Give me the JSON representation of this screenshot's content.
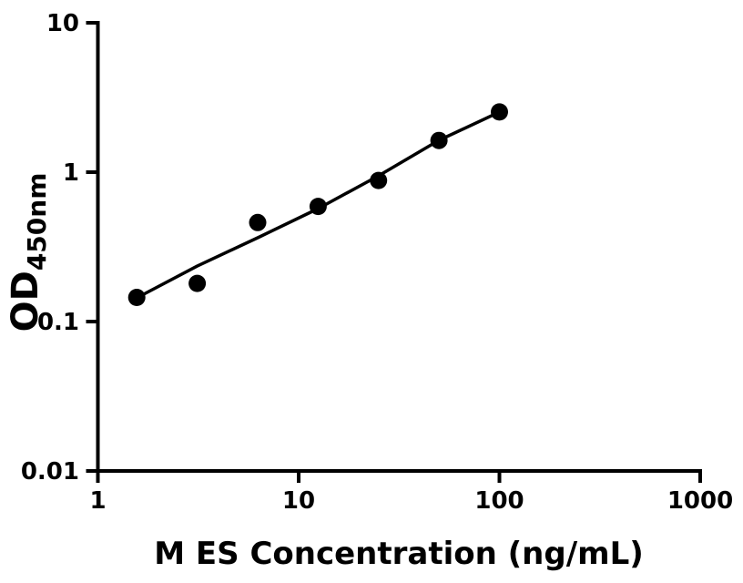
{
  "chart_data": {
    "type": "scatter",
    "title": "",
    "xlabel": "M ES Concentration (ng/mL)",
    "ylabel_main": "OD",
    "ylabel_sub": "450nm",
    "x_scale": "log",
    "y_scale": "log",
    "xlim": [
      1,
      1000
    ],
    "ylim": [
      0.01,
      10
    ],
    "x_ticks": [
      1,
      10,
      100,
      1000
    ],
    "x_tick_labels": [
      "1",
      "10",
      "100",
      "1000"
    ],
    "y_ticks": [
      0.01,
      0.1,
      1,
      10
    ],
    "y_tick_labels": [
      "0.01",
      "0.1",
      "1",
      "10"
    ],
    "grid": false,
    "legend": false,
    "points": {
      "x": [
        1.5625,
        3.125,
        6.25,
        12.5,
        25,
        50,
        100
      ],
      "y": [
        0.145,
        0.18,
        0.46,
        0.59,
        0.88,
        1.63,
        2.53
      ]
    },
    "fit_line": {
      "x": [
        1.5625,
        3.125,
        6.25,
        12.5,
        25,
        50,
        100
      ],
      "y": [
        0.144,
        0.235,
        0.364,
        0.57,
        0.945,
        1.635,
        2.526
      ]
    },
    "colors": {
      "marker": "#000000",
      "line": "#000000",
      "axis": "#000000",
      "background": "#ffffff"
    }
  }
}
